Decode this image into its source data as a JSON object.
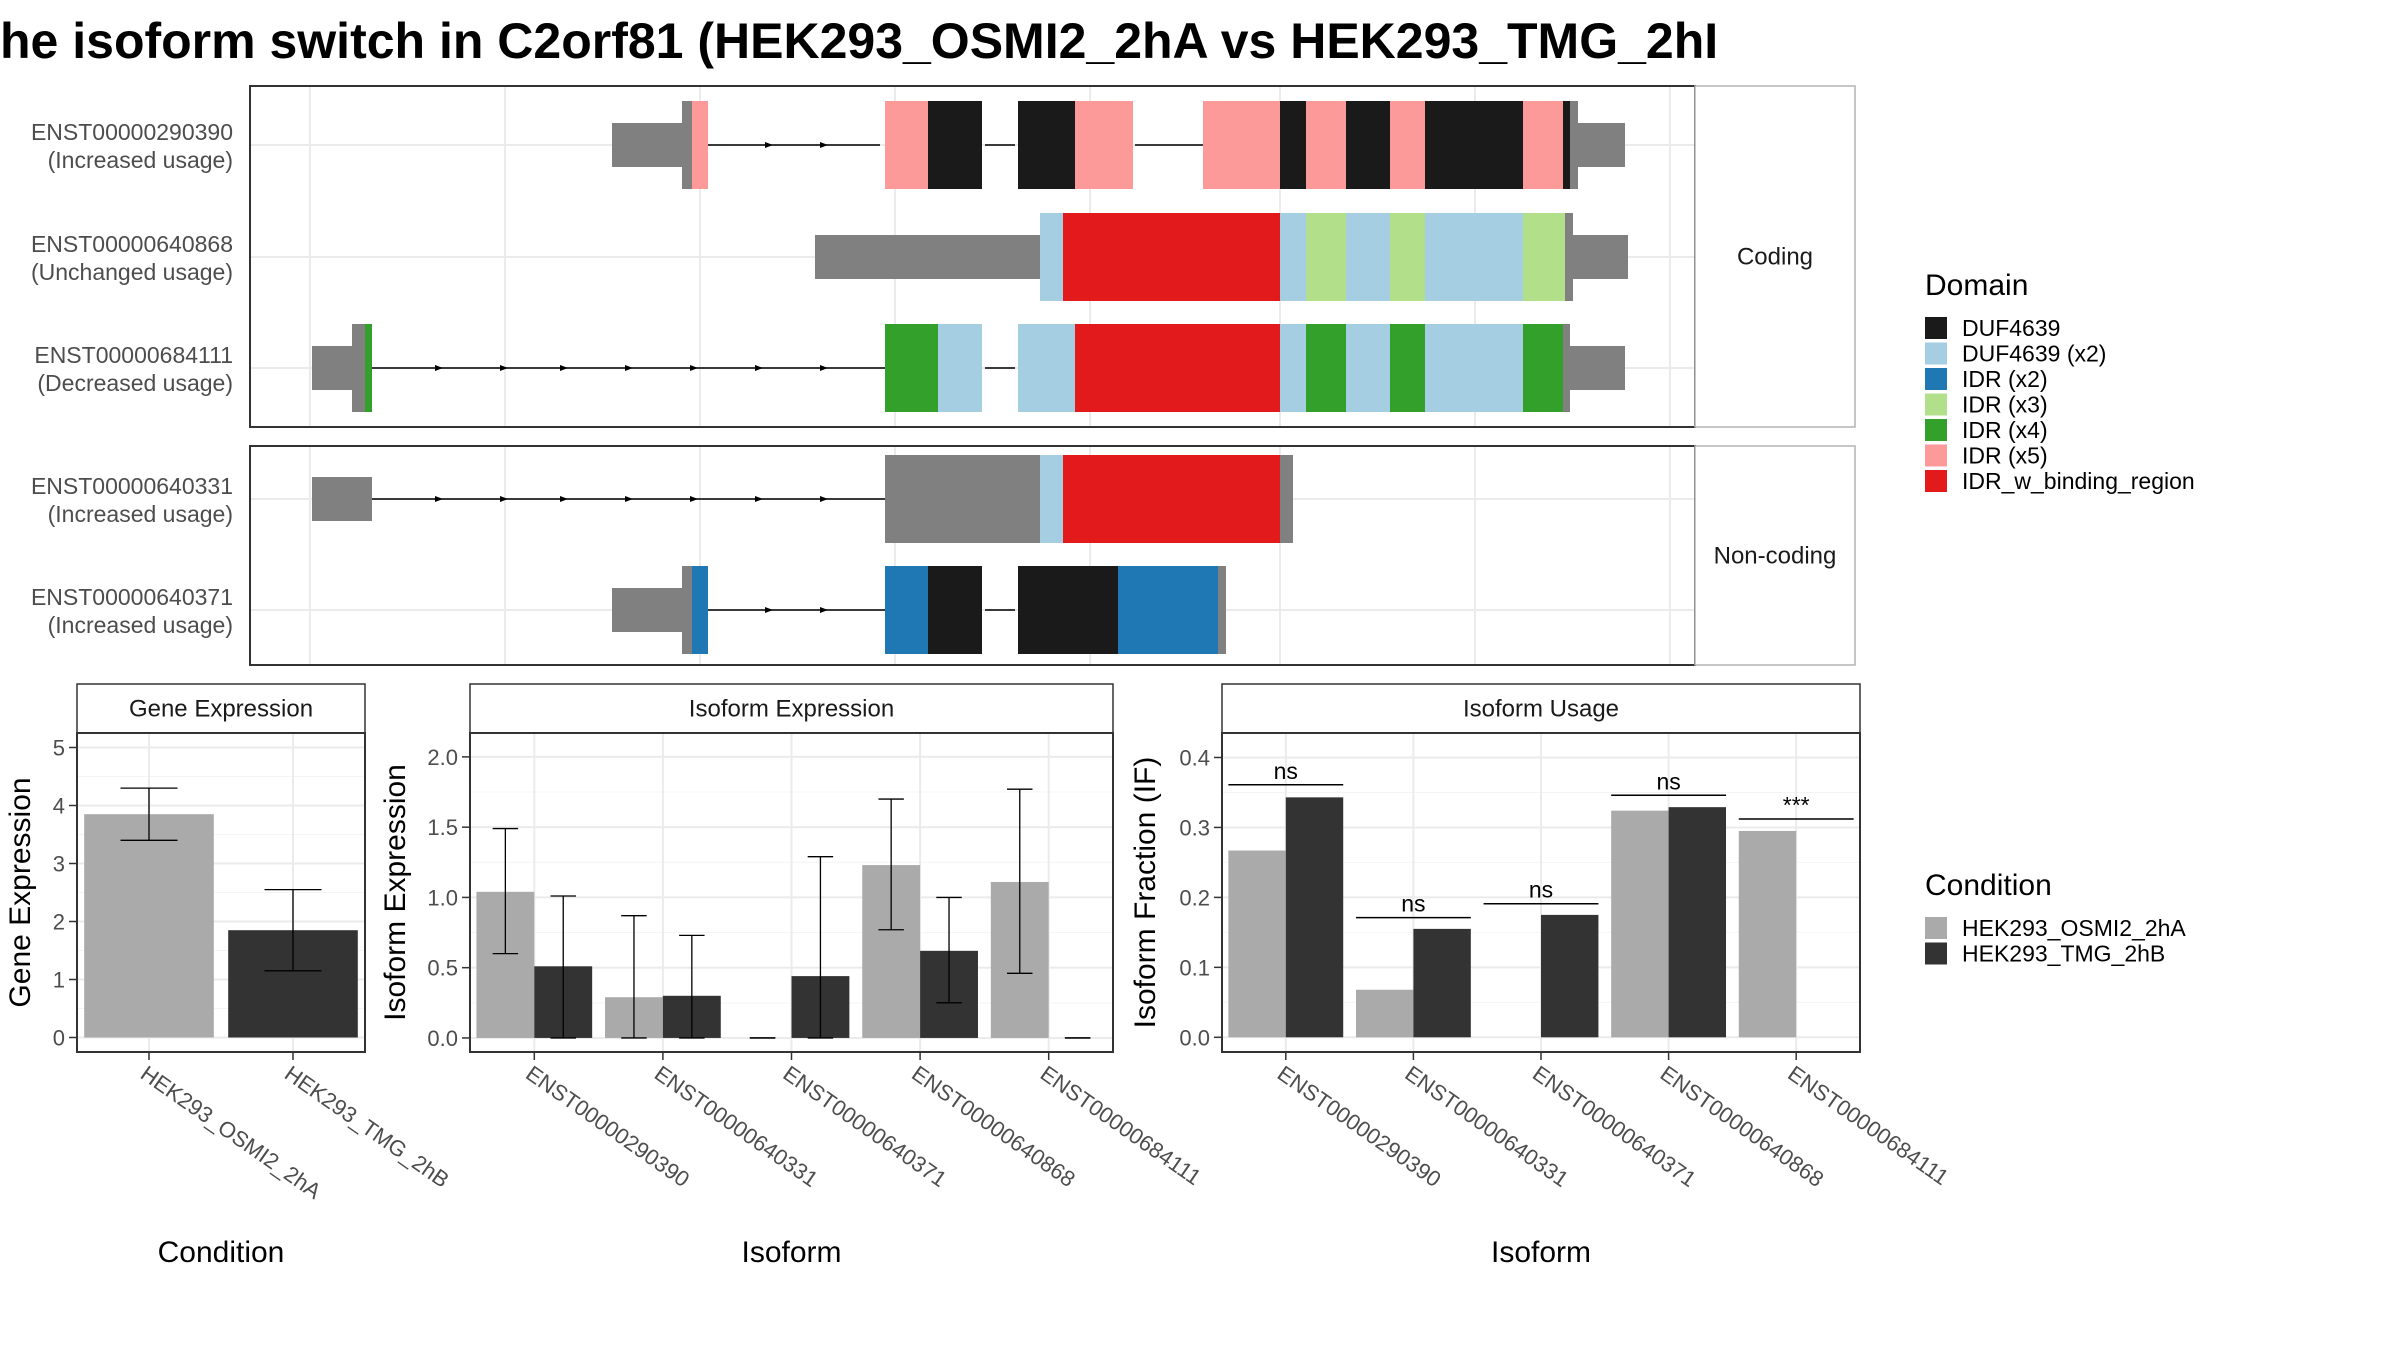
{
  "title": "he isoform switch in C2orf81 (HEK293_OSMI2_2hA vs HEK293_TMG_2hI",
  "colors": {
    "DUF4639": "#1a1a1a",
    "DUF4639 (x2)": "#a6cee3",
    "IDR (x2)": "#1f78b4",
    "IDR (x3)": "#b2df8a",
    "IDR (x4)": "#33a02c",
    "IDR (x5)": "#fb9a99",
    "IDR_w_binding_region": "#e31a1c",
    "exon": "#808080",
    "cond1": "#aaaaaa",
    "cond2": "#333333"
  },
  "structure": {
    "facets": [
      "Coding",
      "Non-coding"
    ],
    "transcripts": [
      {
        "id": "ENST00000290390",
        "usage": "(Increased usage)",
        "facet": 0
      },
      {
        "id": "ENST00000640868",
        "usage": "(Unchanged usage)",
        "facet": 0
      },
      {
        "id": "ENST00000684111",
        "usage": "(Decreased usage)",
        "facet": 0
      },
      {
        "id": "ENST00000640331",
        "usage": "(Increased usage)",
        "facet": 1
      },
      {
        "id": "ENST00000640371",
        "usage": "(Increased usage)",
        "facet": 1
      }
    ]
  },
  "legend": {
    "domain_title": "Domain",
    "domain_items": [
      "DUF4639",
      "DUF4639 (x2)",
      "IDR (x2)",
      "IDR (x3)",
      "IDR (x4)",
      "IDR (x5)",
      "IDR_w_binding_region"
    ],
    "condition_title": "Condition",
    "condition_items": [
      "HEK293_OSMI2_2hA",
      "HEK293_TMG_2hB"
    ]
  },
  "chart_data": [
    {
      "type": "bar",
      "title": "Gene Expression",
      "xlabel": "Condition",
      "ylabel": "Gene Expression",
      "categories": [
        "HEK293_OSMI2_2hA",
        "HEK293_TMG_2hB"
      ],
      "values": [
        3.85,
        1.85
      ],
      "error_low": [
        3.4,
        1.15
      ],
      "error_high": [
        4.3,
        2.55
      ],
      "ylim": [
        0,
        5
      ],
      "yticks": [
        0,
        1,
        2,
        3,
        4,
        5
      ]
    },
    {
      "type": "bar",
      "title": "Isoform Expression",
      "xlabel": "Isoform",
      "ylabel": "Isoform Expression",
      "categories": [
        "ENST00000290390",
        "ENST00000640331",
        "ENST00000640371",
        "ENST00000640868",
        "ENST00000684111"
      ],
      "series": [
        {
          "name": "HEK293_OSMI2_2hA",
          "values": [
            1.04,
            0.29,
            0.0,
            1.23,
            1.11
          ],
          "error_low": [
            0.6,
            0.0,
            0.0,
            0.77,
            0.46
          ],
          "error_high": [
            1.49,
            0.87,
            0.0,
            1.7,
            1.77
          ]
        },
        {
          "name": "HEK293_TMG_2hB",
          "values": [
            0.51,
            0.3,
            0.44,
            0.62,
            0.0
          ],
          "error_low": [
            0.0,
            0.0,
            0.0,
            0.25,
            0.0
          ],
          "error_high": [
            1.01,
            0.73,
            1.29,
            1.0,
            0.0
          ]
        }
      ],
      "ylim": [
        0,
        2.1
      ],
      "yticks": [
        "0.0",
        "0.5",
        "1.0",
        "1.5",
        "2.0"
      ]
    },
    {
      "type": "bar",
      "title": "Isoform Usage",
      "xlabel": "Isoform",
      "ylabel": "Isoform Fraction (IF)",
      "categories": [
        "ENST00000290390",
        "ENST00000640331",
        "ENST00000640371",
        "ENST00000640868",
        "ENST00000684111"
      ],
      "series": [
        {
          "name": "HEK293_OSMI2_2hA",
          "values": [
            0.267,
            0.068,
            0.0,
            0.324,
            0.295
          ]
        },
        {
          "name": "HEK293_TMG_2hB",
          "values": [
            0.343,
            0.155,
            0.175,
            0.329,
            0.0
          ]
        }
      ],
      "significance": [
        "ns",
        "ns",
        "ns",
        "ns",
        "***"
      ],
      "significance_y": [
        0.361,
        0.171,
        0.191,
        0.346,
        0.312
      ],
      "ylim": [
        0,
        0.42
      ],
      "yticks": [
        "0.0",
        "0.1",
        "0.2",
        "0.3",
        "0.4"
      ]
    }
  ]
}
